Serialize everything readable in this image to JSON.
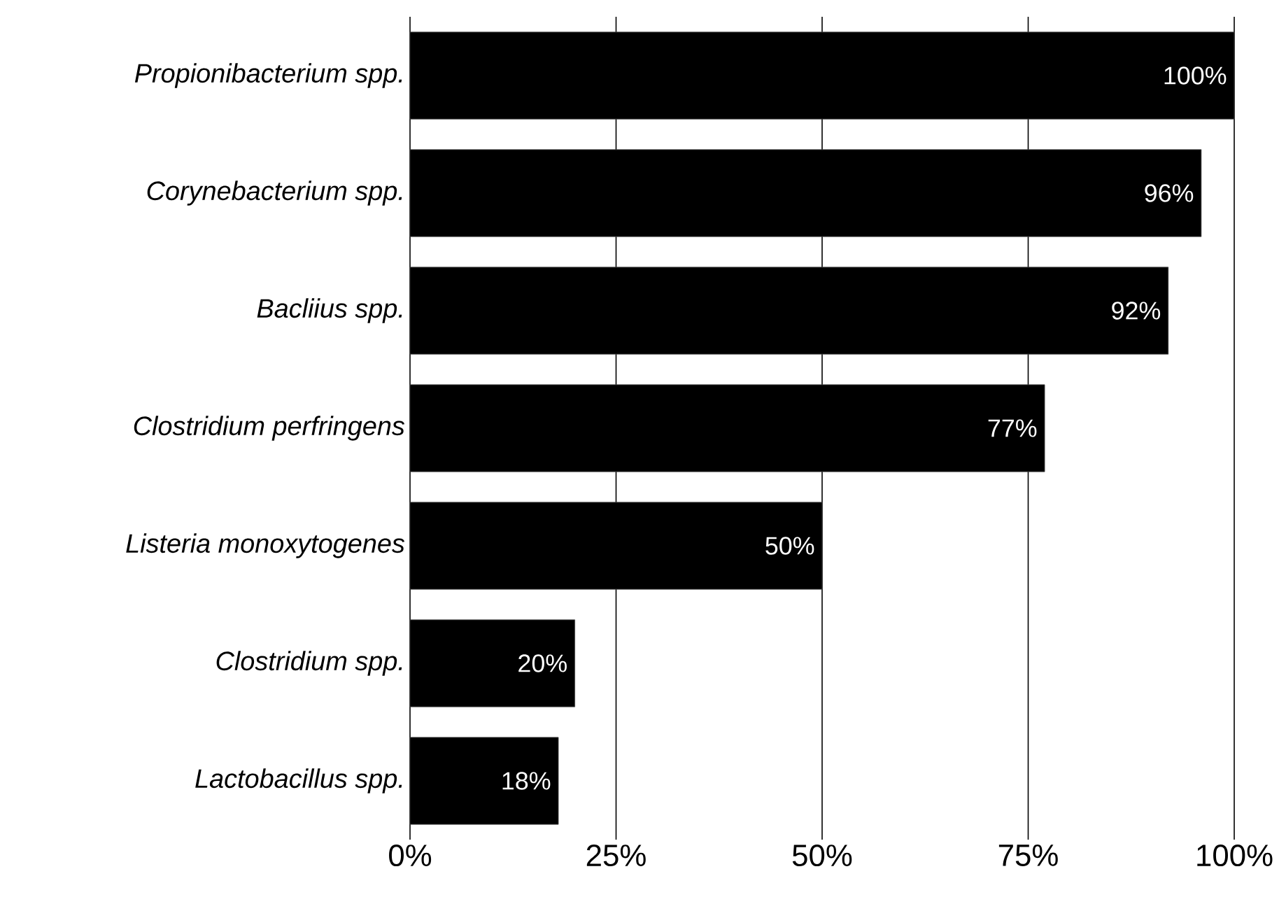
{
  "chart_data": {
    "type": "bar",
    "orientation": "horizontal",
    "categories": [
      "Propionibacterium spp.",
      "Corynebacterium spp.",
      "Bacliius spp.",
      "Clostridium perfringens",
      "Listeria monoxytogenes",
      "Clostridium spp.",
      "Lactobacillus spp."
    ],
    "values": [
      100,
      96,
      92,
      77,
      50,
      20,
      18
    ],
    "value_labels": [
      "100%",
      "96%",
      "92%",
      "77%",
      "50%",
      "20%",
      "18%"
    ],
    "color": "#000000",
    "xlim": [
      0,
      100
    ],
    "xticks": [
      {
        "value": 0,
        "label": "0%"
      },
      {
        "value": 25,
        "label": "25%"
      },
      {
        "value": 50,
        "label": "50%"
      },
      {
        "value": 75,
        "label": "75%"
      },
      {
        "value": 100,
        "label": "100%"
      }
    ],
    "grid": "x"
  }
}
